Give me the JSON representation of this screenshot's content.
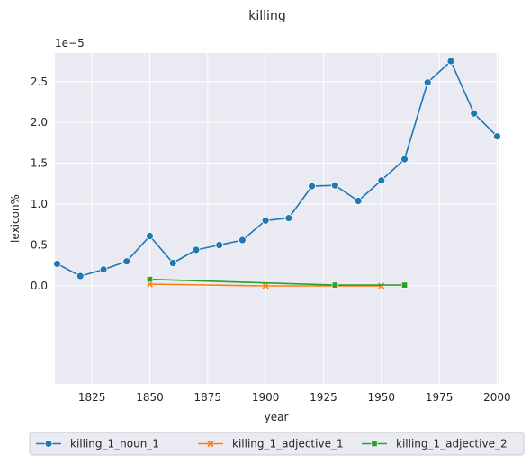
{
  "chart_data": {
    "type": "line",
    "title": "killing",
    "xlabel": "year",
    "ylabel": "lexicon%",
    "y_offset_text": "1e−5",
    "xlim": [
      1809,
      2001
    ],
    "ylim": [
      -1.2,
      2.85
    ],
    "y_unit_multiplier": "1e-5",
    "x_ticks": [
      1825,
      1850,
      1875,
      1900,
      1925,
      1950,
      1975,
      2000
    ],
    "y_ticks": [
      0.0,
      0.5,
      1.0,
      1.5,
      2.0,
      2.5
    ],
    "y_tick_labels": [
      "0.0",
      "0.5",
      "1.0",
      "1.5",
      "2.0",
      "2.5"
    ],
    "grid": true,
    "legend_placement": "bottom-center",
    "series": [
      {
        "name": "killing_1_noun_1",
        "color": "#1f77b4",
        "marker": "circle",
        "x": [
          1810,
          1820,
          1830,
          1840,
          1850,
          1860,
          1870,
          1880,
          1890,
          1900,
          1910,
          1920,
          1930,
          1940,
          1950,
          1960,
          1970,
          1980,
          1990,
          2000
        ],
        "y": [
          0.27,
          0.12,
          0.2,
          0.3,
          0.61,
          0.28,
          0.44,
          0.5,
          0.56,
          0.8,
          0.83,
          1.22,
          1.23,
          1.04,
          1.29,
          1.55,
          2.49,
          2.75,
          2.11,
          1.83
        ]
      },
      {
        "name": "killing_1_adjective_1",
        "color": "#ff7f0e",
        "marker": "x",
        "x": [
          1850,
          1900,
          1950
        ],
        "y": [
          0.02,
          0.0,
          0.0
        ]
      },
      {
        "name": "killing_1_adjective_2",
        "color": "#2ca02c",
        "marker": "square",
        "x": [
          1850,
          1930,
          1960
        ],
        "y": [
          0.08,
          0.01,
          0.01
        ]
      }
    ]
  }
}
